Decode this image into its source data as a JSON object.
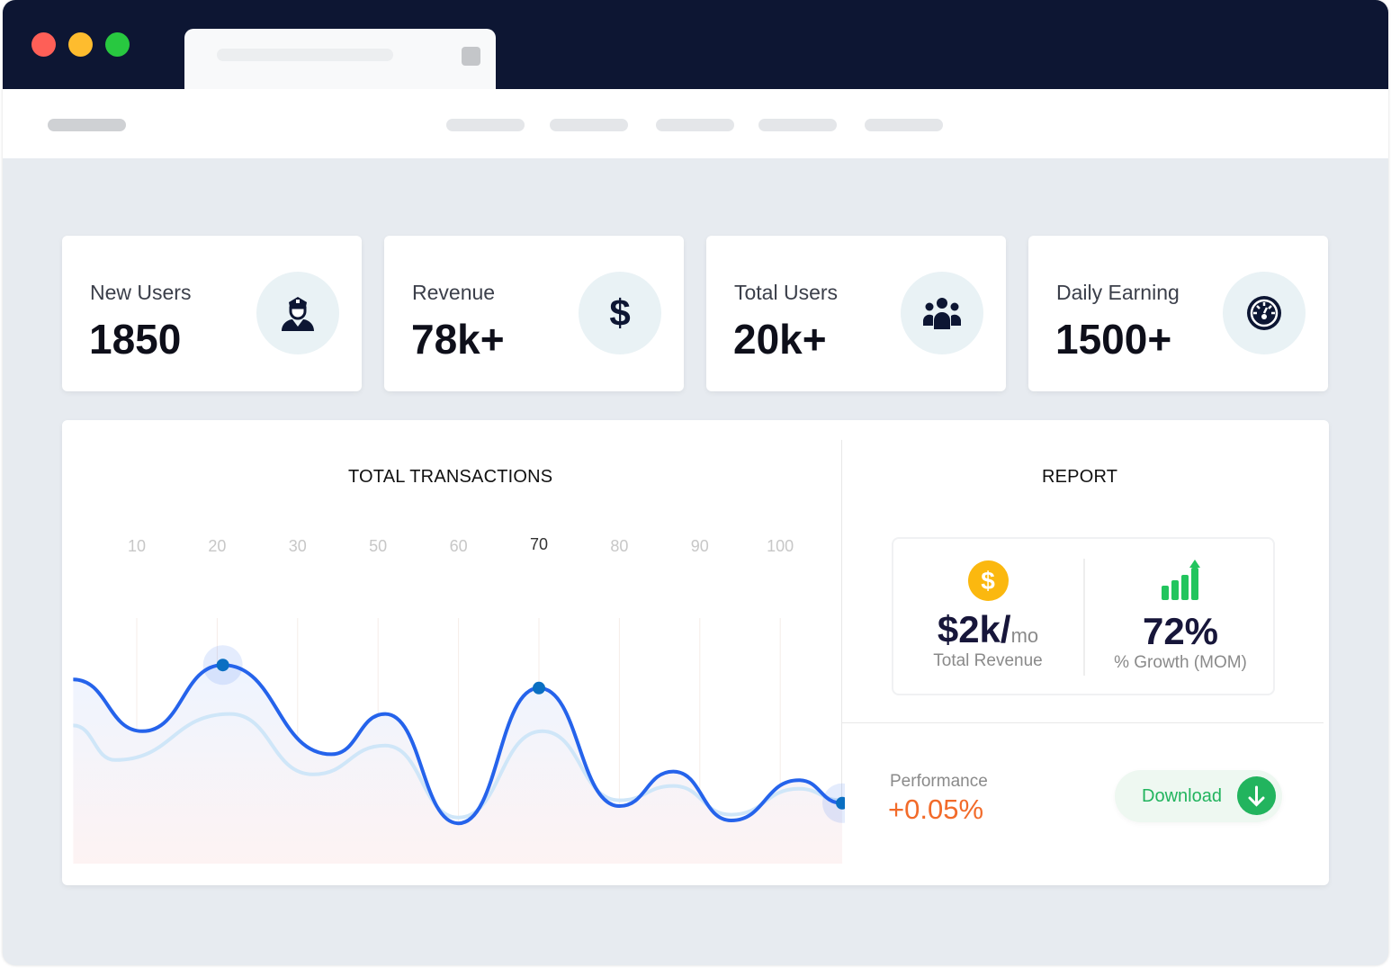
{
  "window": {
    "traffic_lights": [
      "#fe5f57",
      "#febc2e",
      "#28c840"
    ],
    "titlebar_color": "#0d1633"
  },
  "stats": [
    {
      "label": "New Users",
      "value": "1850",
      "icon": "user-officer-icon"
    },
    {
      "label": "Revenue",
      "value": "78k+",
      "icon": "dollar-icon"
    },
    {
      "label": "Total Users",
      "value": "20k+",
      "icon": "users-group-icon"
    },
    {
      "label": "Daily Earning",
      "value": "1500+",
      "icon": "speedometer-icon"
    }
  ],
  "transactions": {
    "title": "TOTAL TRANSACTIONS"
  },
  "chart_data": {
    "type": "line",
    "title": "TOTAL TRANSACTIONS",
    "categories": [
      "10",
      "20",
      "30",
      "50",
      "60",
      "70",
      "80",
      "90",
      "100"
    ],
    "active_category": "70",
    "grid": "vertical",
    "colors": {
      "main": "#2563eb",
      "secondary": "#cfe6f8",
      "marker": "#0a6fc2"
    },
    "series": [
      {
        "points": [
          [
            -0.79,
            64
          ],
          [
            0.07,
            46
          ],
          [
            1.07,
            69
          ],
          [
            2.42,
            38
          ],
          [
            3.09,
            52
          ],
          [
            4.0,
            14
          ],
          [
            5.0,
            61
          ],
          [
            6.0,
            20
          ],
          [
            6.67,
            32
          ],
          [
            7.39,
            15
          ],
          [
            8.23,
            29
          ],
          [
            8.77,
            21
          ]
        ],
        "highlighted": [
          [
            1.07,
            69
          ],
          [
            5.0,
            61
          ],
          [
            8.77,
            21
          ]
        ]
      },
      {
        "points": [
          [
            -0.79,
            48
          ],
          [
            -0.27,
            36
          ],
          [
            1.16,
            52
          ],
          [
            2.19,
            31
          ],
          [
            3.09,
            41
          ],
          [
            4.0,
            16
          ],
          [
            5.04,
            46
          ],
          [
            6.0,
            22
          ],
          [
            6.67,
            27
          ],
          [
            7.39,
            17
          ],
          [
            8.23,
            26
          ],
          [
            8.77,
            22
          ]
        ]
      }
    ]
  },
  "report": {
    "title": "REPORT",
    "revenue": {
      "value": "$2k/",
      "unit": "mo",
      "label": "Total Revenue",
      "icon": "coin-dollar-icon",
      "color": "#fbb80f"
    },
    "growth": {
      "value": "72%",
      "label": "% Growth (MOM)",
      "icon": "growth-bars-icon",
      "color": "#22c55e"
    },
    "performance": {
      "label": "Performance",
      "value": "+0.05%",
      "color": "#f26b2a"
    },
    "download": {
      "label": "Download",
      "icon": "arrow-down-icon",
      "color": "#22b45e"
    }
  }
}
